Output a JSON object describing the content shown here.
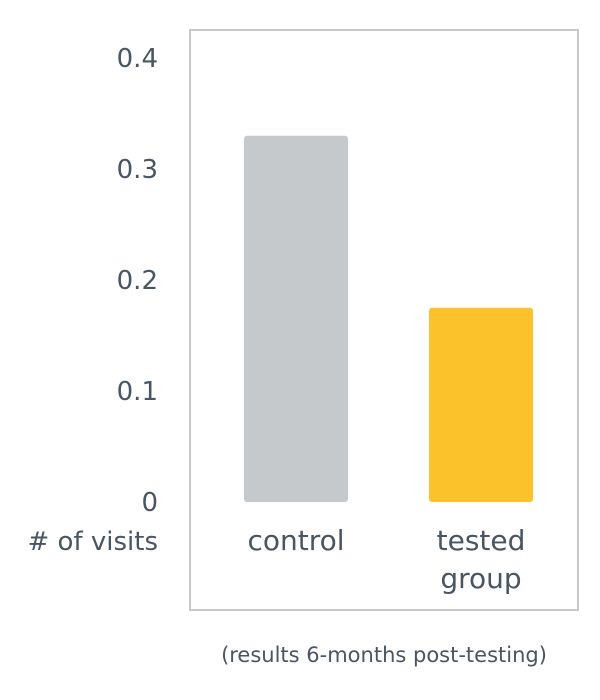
{
  "chart_data": {
    "type": "bar",
    "categories": [
      [
        "control"
      ],
      [
        "tested",
        "group"
      ]
    ],
    "values": [
      0.33,
      0.175
    ],
    "colors": [
      "#c5c9cb",
      "#fcc22c"
    ],
    "frame_color": "#c5c9cb",
    "text_color": "#4a5563",
    "ylabel": "# of visits",
    "ylim": [
      0,
      0.4
    ],
    "yticks": [
      "0.4",
      "0.3",
      "0.2",
      "0.1",
      "0"
    ],
    "ytick_values": [
      0.4,
      0.3,
      0.2,
      0.1,
      0
    ],
    "grid": false,
    "legend": "none",
    "annotation": "(results 6-months post-testing)"
  }
}
